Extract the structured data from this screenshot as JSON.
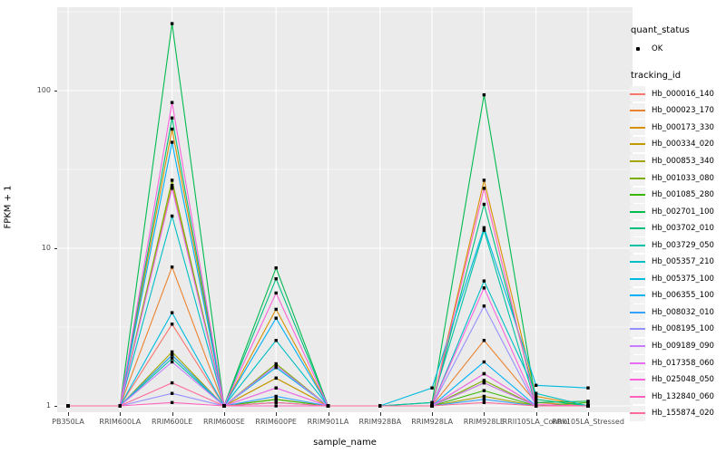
{
  "chart_data": {
    "type": "line",
    "xlabel": "sample_name",
    "ylabel": "FPKM + 1",
    "y_scale": "log10",
    "y_ticks": [
      1,
      10,
      100
    ],
    "y_minor_ticks": [
      3.1623,
      31.623,
      316.23
    ],
    "ylim": [
      0.91,
      337
    ],
    "panel_bg": "#EBEBEB",
    "grid_color": "#FFFFFF",
    "marker_color": "#000000",
    "categories": [
      "PB350LA",
      "RRIM600LA",
      "RRIM600LE",
      "RRIM600SE",
      "RRIM600PE",
      "RRIM901LA",
      "RRIM928BA",
      "RRIM928LA",
      "RRIM928LE",
      "RRII105LA_Control",
      "RRII105LA_Stressed"
    ],
    "legend": {
      "quant_status_title": "quant_status",
      "quant_status_items": [
        {
          "label": "OK",
          "marker": "black-point"
        }
      ],
      "tracking_id_title": "tracking_id"
    },
    "series": [
      {
        "name": "Hb_000016_140",
        "color": "#F8766D",
        "values": [
          1,
          1,
          3.3,
          1,
          1.3,
          1,
          1,
          1,
          1.6,
          1,
          1
        ]
      },
      {
        "name": "Hb_000023_170",
        "color": "#EA8331",
        "values": [
          1,
          1,
          7.6,
          1,
          1.5,
          1,
          1,
          1,
          2.6,
          1.05,
          1
        ]
      },
      {
        "name": "Hb_000173_330",
        "color": "#D89000",
        "values": [
          1,
          1,
          57,
          1,
          4.1,
          1,
          1,
          1,
          27,
          1.15,
          1
        ]
      },
      {
        "name": "Hb_000334_020",
        "color": "#C09B00",
        "values": [
          1,
          1,
          25,
          1,
          1.5,
          1,
          1,
          1,
          1.4,
          1,
          1
        ]
      },
      {
        "name": "Hb_000853_340",
        "color": "#A3A500",
        "values": [
          1,
          1,
          2.2,
          1,
          1.1,
          1,
          1,
          1,
          1.15,
          1,
          1
        ]
      },
      {
        "name": "Hb_001033_080",
        "color": "#7CAE00",
        "values": [
          1,
          1,
          27,
          1,
          1.85,
          1,
          1,
          1,
          1.45,
          1,
          1
        ]
      },
      {
        "name": "Hb_001085_280",
        "color": "#39B600",
        "values": [
          1,
          1,
          2.1,
          1,
          1.1,
          1,
          1,
          1,
          1.25,
          1,
          1.05
        ]
      },
      {
        "name": "Hb_002701_100",
        "color": "#00BB4E",
        "values": [
          1,
          1,
          266,
          1,
          7.5,
          1,
          1,
          1.05,
          94,
          1.05,
          1.07
        ]
      },
      {
        "name": "Hb_003702_010",
        "color": "#00BF7D",
        "values": [
          1,
          1,
          67,
          1,
          6.4,
          1,
          1,
          1,
          19,
          1.1,
          1
        ]
      },
      {
        "name": "Hb_003729_050",
        "color": "#00C1A3",
        "values": [
          1,
          1,
          2.0,
          1,
          1.05,
          1,
          1,
          1.05,
          13,
          1,
          1
        ]
      },
      {
        "name": "Hb_005357_210",
        "color": "#00BFC4",
        "values": [
          1,
          1,
          16,
          1,
          2.6,
          1,
          1,
          1,
          6.2,
          1.2,
          1
        ]
      },
      {
        "name": "Hb_005375_100",
        "color": "#00BAE0",
        "values": [
          1,
          1,
          3.9,
          1,
          1.75,
          1,
          1,
          1.3,
          13.5,
          1.35,
          1.3
        ]
      },
      {
        "name": "Hb_006355_100",
        "color": "#00B0F6",
        "values": [
          1,
          1,
          47,
          1,
          3.6,
          1,
          1,
          1,
          1.9,
          1,
          1
        ]
      },
      {
        "name": "Hb_008032_010",
        "color": "#35A2FF",
        "values": [
          1,
          1,
          2.1,
          1,
          1.15,
          1,
          1,
          1,
          1.1,
          1,
          1
        ]
      },
      {
        "name": "Hb_008195_100",
        "color": "#9590FF",
        "values": [
          1,
          1,
          1.2,
          1,
          1.8,
          1,
          1,
          1,
          4.3,
          1,
          1
        ]
      },
      {
        "name": "Hb_009189_090",
        "color": "#C77CFF",
        "values": [
          1,
          1,
          1.9,
          1,
          1.8,
          1,
          1,
          1,
          1.4,
          1,
          1
        ]
      },
      {
        "name": "Hb_017358_060",
        "color": "#E76BF3",
        "values": [
          1,
          1,
          24,
          1,
          1.3,
          1,
          1,
          1,
          1.6,
          1,
          1
        ]
      },
      {
        "name": "Hb_025048_050",
        "color": "#FA62DB",
        "values": [
          1,
          1,
          84,
          1,
          5.2,
          1,
          1,
          1,
          5.6,
          1.02,
          1
        ]
      },
      {
        "name": "Hb_132840_060",
        "color": "#FF62BC",
        "values": [
          1,
          1,
          1.05,
          1,
          1,
          1,
          1,
          1,
          24,
          1,
          1
        ]
      },
      {
        "name": "Hb_155874_020",
        "color": "#FF6A98",
        "values": [
          1,
          1,
          1.4,
          1,
          1.05,
          1,
          1,
          1,
          1.05,
          1,
          1
        ]
      }
    ]
  }
}
